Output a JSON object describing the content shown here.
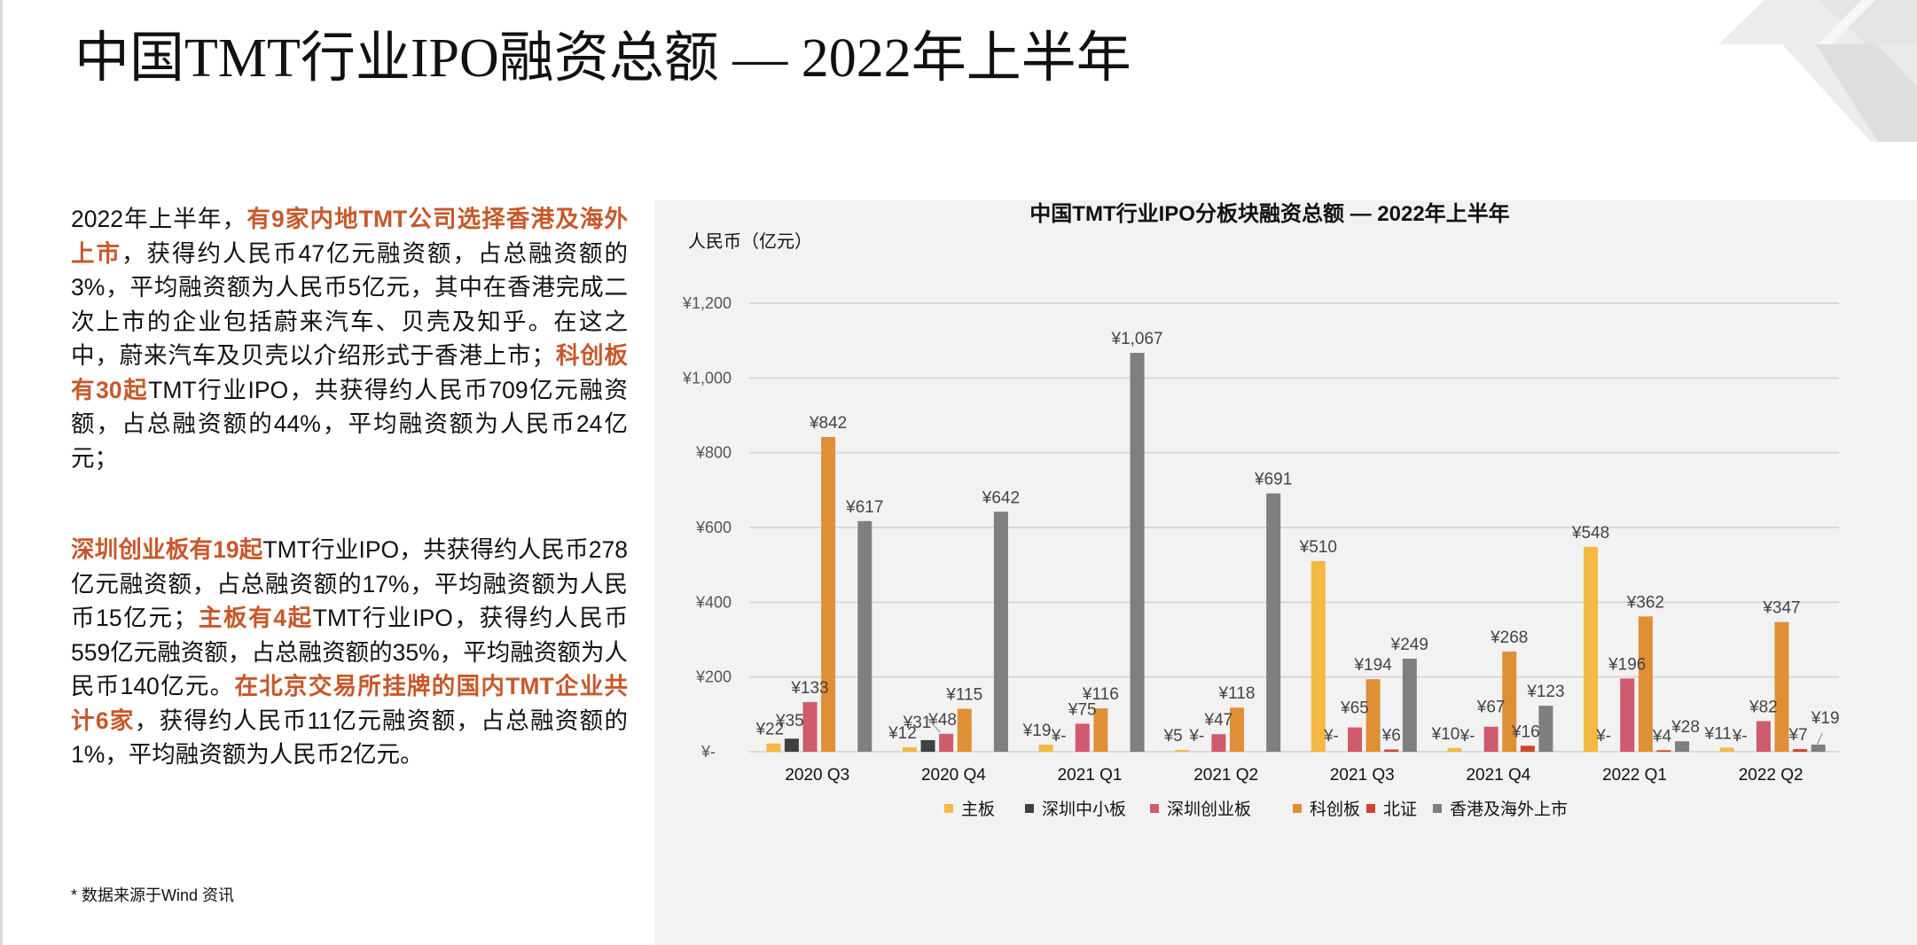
{
  "slide": {
    "title": "中国TMT行业IPO融资总额 — 2022年上半年",
    "paragraphs": [
      [
        {
          "text": "2022年上半年，",
          "highlight": false
        },
        {
          "text": "有9家内地TMT公司选择香港及海外上市",
          "highlight": true
        },
        {
          "text": "，获得约人民币47亿元融资额，占总融资额的3%，平均融资额为人民币5亿元，其中在香港完成二次上市的企业包括蔚来汽车、贝壳及知乎。在这之中，蔚来汽车及贝壳以介绍形式于香港上市；",
          "highlight": false
        },
        {
          "text": "科创板有30起",
          "highlight": true
        },
        {
          "text": "TMT行业IPO，共获得约人民币709亿元融资额，占总融资额的44%，平均融资额为人民币24亿元；",
          "highlight": false
        }
      ],
      [
        {
          "text": "深圳创业板有19起",
          "highlight": true
        },
        {
          "text": "TMT行业IPO，共获得约人民币278亿元融资额，占总融资额的17%，平均融资额为人民币15亿元；",
          "highlight": false
        },
        {
          "text": "主板有4起",
          "highlight": true
        },
        {
          "text": "TMT行业IPO，获得约人民币559亿元融资额，占总融资额的35%，平均融资额为人民币140亿元。",
          "highlight": false
        },
        {
          "text": "在北京交易所挂牌的国内TMT企业共计6家",
          "highlight": true
        },
        {
          "text": "，获得约人民币11亿元融资额，占总融资额的1%，平均融资额为人民币2亿元。",
          "highlight": false
        }
      ]
    ],
    "footnote": "* 数据来源于Wind 资讯",
    "highlight_color": "#c8582a"
  },
  "chart_data": {
    "type": "bar",
    "title": "中国TMT行业IPO分板块融资总额 — 2022年上半年",
    "ylabel": "人民币（亿元）",
    "xlabel": "",
    "ylim": [
      0,
      1200
    ],
    "yticks": [
      0,
      200,
      400,
      600,
      800,
      1000,
      1200
    ],
    "ytick_labels": [
      "¥-",
      "¥200",
      "¥400",
      "¥600",
      "¥800",
      "¥1,000",
      "¥1,200"
    ],
    "grid": true,
    "legend_position": "bottom",
    "categories": [
      "2020 Q3",
      "2020 Q4",
      "2021 Q1",
      "2021 Q2",
      "2021 Q3",
      "2021 Q4",
      "2022 Q1",
      "2022 Q2"
    ],
    "series": [
      {
        "name": "主板",
        "color": "#f4b942",
        "values": [
          22,
          12,
          19,
          5,
          510,
          10,
          548,
          11
        ]
      },
      {
        "name": "深圳中小板",
        "color": "#404040",
        "values": [
          35,
          31,
          0,
          0,
          0,
          0,
          0,
          0
        ]
      },
      {
        "name": "深圳创业板",
        "color": "#cf5b6c",
        "values": [
          133,
          48,
          75,
          47,
          65,
          67,
          196,
          82
        ]
      },
      {
        "name": "科创板",
        "color": "#df8f35",
        "values": [
          842,
          115,
          116,
          118,
          194,
          268,
          362,
          347
        ]
      },
      {
        "name": "北证",
        "color": "#d2432d",
        "values": [
          null,
          null,
          null,
          null,
          6,
          16,
          4,
          7
        ]
      },
      {
        "name": "香港及海外上市",
        "color": "#7f7f7f",
        "values": [
          617,
          642,
          1067,
          691,
          249,
          123,
          28,
          19
        ]
      }
    ],
    "value_prefix": "¥",
    "zero_label": "¥-"
  }
}
